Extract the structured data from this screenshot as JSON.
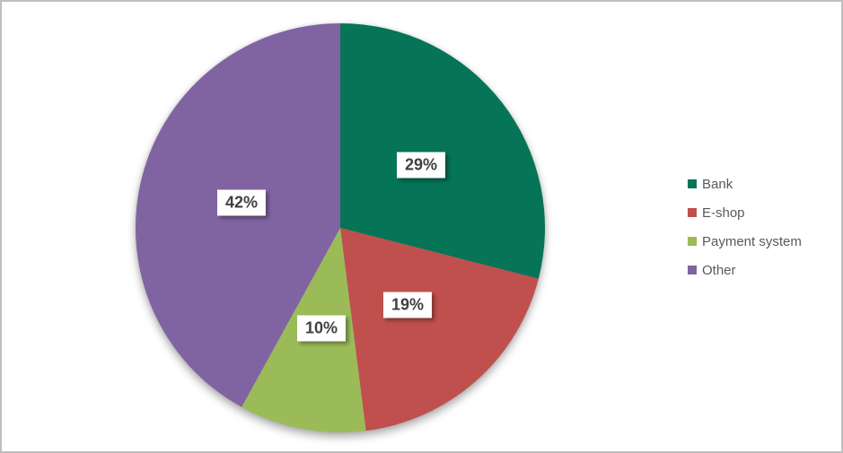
{
  "chart_data": {
    "type": "pie",
    "title": "",
    "categories": [
      "Bank",
      "E-shop",
      "Payment system",
      "Other"
    ],
    "values": [
      29,
      19,
      10,
      42
    ],
    "point_labels": [
      "29%",
      "19%",
      "10%",
      "42%"
    ],
    "colors": [
      "#067457",
      "#C0504D",
      "#9BBB59",
      "#8064A2"
    ],
    "legend_position": "right",
    "direction": "clockwise",
    "start_angle_deg": 0,
    "label_text_color": "#3F3F3F",
    "legend_text_color": "#595959",
    "background_color": "#FFFFFF",
    "border_color": "#BFBFBF"
  }
}
